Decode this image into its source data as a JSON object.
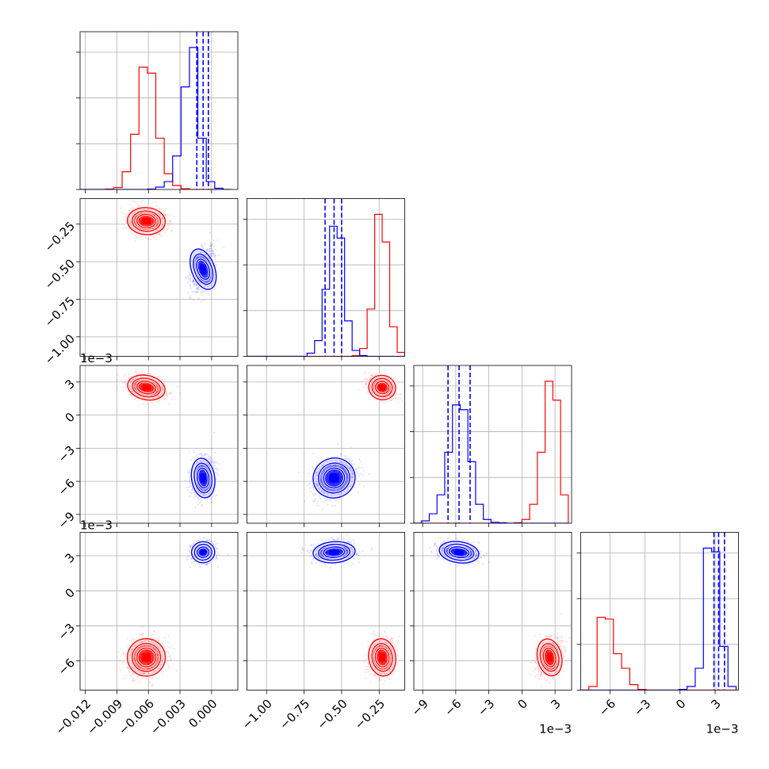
{
  "figure": {
    "type": "corner-plot"
  },
  "chart_data": {
    "type": "corner",
    "series": [
      {
        "color": "#ff0000",
        "means": [
          -0.0062,
          -0.23,
          0.0025,
          -0.0057
        ],
        "sd": [
          0.0009,
          0.045,
          0.00055,
          0.0008
        ],
        "quantiles_shown": false
      },
      {
        "color": "#0000ff",
        "means": [
          -0.0008,
          -0.55,
          -0.0057,
          0.0033
        ],
        "sd": [
          0.00055,
          0.07,
          0.0009,
          0.00045
        ],
        "quantiles_shown": true,
        "quantiles": [
          [
            -0.0014,
            -0.0008,
            -0.0003
          ],
          [
            -0.61,
            -0.55,
            -0.5
          ],
          [
            -0.0067,
            -0.0057,
            -0.0047
          ],
          [
            0.0029,
            0.0033,
            0.0038
          ]
        ]
      }
    ],
    "parameters": [
      {
        "range": [
          -0.0125,
          0.0025
        ],
        "ticks": [
          -0.012,
          -0.009,
          -0.006,
          -0.003,
          0.0
        ],
        "tick_labels": [
          "−0.012",
          "−0.009",
          "−0.006",
          "−0.003",
          "0.000"
        ],
        "offset_label": ""
      },
      {
        "range": [
          -1.13,
          -0.08
        ],
        "ticks": [
          -1.0,
          -0.75,
          -0.5,
          -0.25
        ],
        "tick_labels": [
          "−1.00",
          "−0.75",
          "−0.50",
          "−0.25"
        ],
        "offset_label": ""
      },
      {
        "range": [
          -0.0098,
          0.0045
        ],
        "ticks": [
          -0.009,
          -0.006,
          -0.003,
          0.0,
          0.003
        ],
        "tick_labels": [
          "−9",
          "−6",
          "−3",
          "0",
          "3"
        ],
        "offset_label": "1e−3"
      },
      {
        "range": [
          -0.0085,
          0.005
        ],
        "ticks": [
          -0.006,
          -0.003,
          0.0,
          0.003
        ],
        "tick_labels": [
          "−6",
          "−3",
          "0",
          "3"
        ],
        "offset_label": "1e−3"
      }
    ],
    "histograms": [
      {
        "bin_edges": [
          -0.0125,
          -0.0117,
          -0.0109,
          -0.0101,
          -0.0093,
          -0.0085,
          -0.0077,
          -0.0069,
          -0.0061,
          -0.0053,
          -0.0045,
          -0.0037,
          -0.0029,
          -0.0021,
          -0.0013,
          -0.0005,
          0.0003,
          0.0011,
          0.0019
        ],
        "counts": [
          [
            0,
            0,
            0,
            1,
            5,
            45,
            140,
            310,
            295,
            130,
            40,
            10,
            2,
            0,
            0,
            0,
            0,
            0
          ],
          [
            0,
            0,
            0,
            0,
            0,
            0,
            0,
            0,
            1,
            6,
            20,
            85,
            260,
            360,
            130,
            20,
            3,
            0
          ]
        ]
      },
      {
        "bin_edges": [
          -1.13,
          -1.08,
          -1.03,
          -0.98,
          -0.93,
          -0.88,
          -0.83,
          -0.78,
          -0.73,
          -0.68,
          -0.63,
          -0.58,
          -0.53,
          -0.48,
          -0.43,
          -0.38,
          -0.33,
          -0.28,
          -0.23,
          -0.18,
          -0.13,
          -0.08
        ],
        "counts": [
          [
            0,
            0,
            0,
            0,
            0,
            0,
            0,
            0,
            0,
            0,
            0,
            0,
            0,
            0,
            2,
            20,
            120,
            360,
            290,
            75,
            10
          ],
          [
            0,
            0,
            0,
            0,
            0,
            0,
            0,
            0,
            8,
            40,
            170,
            330,
            300,
            90,
            15,
            2,
            0,
            0,
            0,
            0,
            0
          ]
        ]
      },
      {
        "bin_edges": [
          -0.0098,
          -0.0091,
          -0.0084,
          -0.0077,
          -0.007,
          -0.0063,
          -0.0056,
          -0.0049,
          -0.0042,
          -0.0035,
          -0.0028,
          -0.0021,
          -0.0014,
          -0.0007,
          0.0,
          0.0007,
          0.0014,
          0.0021,
          0.0028,
          0.0035,
          0.0042
        ],
        "counts": [
          [
            0,
            0,
            0,
            0,
            0,
            0,
            0,
            0,
            0,
            0,
            0,
            0,
            0,
            1,
            8,
            40,
            150,
            300,
            260,
            60
          ],
          [
            0,
            5,
            20,
            60,
            150,
            250,
            240,
            130,
            40,
            8,
            2,
            1,
            0,
            0,
            0,
            0,
            0,
            0,
            0,
            0
          ]
        ]
      },
      {
        "bin_edges": [
          -0.0085,
          -0.0078,
          -0.0071,
          -0.0064,
          -0.0057,
          -0.005,
          -0.0043,
          -0.0036,
          -0.0029,
          -0.0022,
          -0.0015,
          -0.0008,
          -0.0001,
          0.0006,
          0.0013,
          0.002,
          0.0027,
          0.0034,
          0.0041,
          0.0048
        ],
        "counts": [
          [
            0,
            10,
            200,
            195,
            100,
            60,
            15,
            2,
            0,
            0,
            0,
            0,
            0,
            0,
            0,
            0,
            0,
            0,
            0
          ],
          [
            0,
            0,
            0,
            0,
            0,
            0,
            0,
            0,
            0,
            0,
            0,
            0,
            2,
            10,
            60,
            390,
            380,
            120,
            10
          ]
        ]
      }
    ],
    "grid": true
  }
}
